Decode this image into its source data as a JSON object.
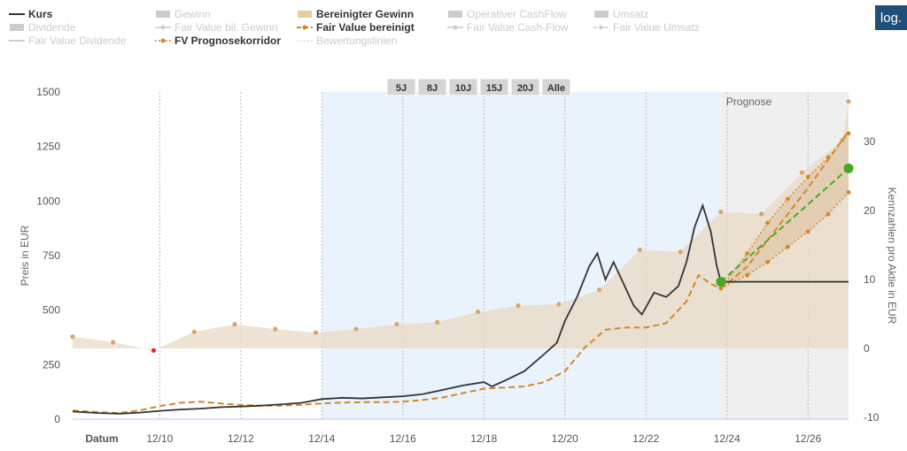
{
  "legend": [
    {
      "label": "Kurs",
      "active": true,
      "style": "line-solid",
      "color": "#333333"
    },
    {
      "label": "Gewinn",
      "active": false,
      "style": "area",
      "color": "#cccccc"
    },
    {
      "label": "Bereinigter Gewinn",
      "active": true,
      "style": "area",
      "color": "#e8c9a0"
    },
    {
      "label": "Operativer CashFlow",
      "active": false,
      "style": "area",
      "color": "#cccccc"
    },
    {
      "label": "Umsatz",
      "active": false,
      "style": "area",
      "color": "#cccccc"
    },
    {
      "label": "Dividende",
      "active": false,
      "style": "area",
      "color": "#cccccc"
    },
    {
      "label": "Fair Value bil. Gewinn",
      "active": false,
      "style": "line-dot",
      "color": "#cccccc"
    },
    {
      "label": "Fair Value bereinigt",
      "active": true,
      "style": "dash-dot",
      "color": "#d4862a"
    },
    {
      "label": "Fair Value Cash-Flow",
      "active": false,
      "style": "line-dot",
      "color": "#cccccc"
    },
    {
      "label": "Fair Value Umsatz",
      "active": false,
      "style": "line-arrow",
      "color": "#cccccc"
    },
    {
      "label": "Fair Value Dividende",
      "active": false,
      "style": "line-solid",
      "color": "#cccccc"
    },
    {
      "label": "FV Prognosekorridor",
      "active": true,
      "style": "dotted-dot",
      "color": "#d4862a"
    },
    {
      "label": "Bewertungslinien",
      "active": false,
      "style": "dotted",
      "color": "#cccccc"
    }
  ],
  "log_button": "log.",
  "range_buttons": [
    "5J",
    "8J",
    "10J",
    "15J",
    "20J",
    "Alle"
  ],
  "prognose_label": "Prognose",
  "colors": {
    "kurs": "#333333",
    "fair_value": "#d4862a",
    "earnings_area": "#ead9c4",
    "earnings_dot": "#d4a76a",
    "forecast_bg": "#efefef",
    "range_highlight": "#eaf3fb",
    "target_line": "#44aa22",
    "red_point": "#e03020"
  },
  "chart_data": {
    "type": "line",
    "xlabel": "Datum",
    "ylabel": "Preis in EUR",
    "y2label": "Kennzahlen pro Aktie in EUR",
    "xlim": [
      2007.85,
      2027.0
    ],
    "ylim": [
      0,
      1500
    ],
    "y2lim": [
      -10,
      37
    ],
    "x_ticks": [
      2010,
      2012,
      2014,
      2016,
      2018,
      2020,
      2022,
      2024,
      2026
    ],
    "x_tick_labels": [
      "12/10",
      "12/12",
      "12/14",
      "12/16",
      "12/18",
      "12/20",
      "12/22",
      "12/24",
      "12/26"
    ],
    "y_ticks": [
      0,
      250,
      500,
      750,
      1000,
      1250,
      1500
    ],
    "y2_ticks": [
      -10,
      0,
      10,
      20,
      30
    ],
    "forecast_start": 2023.85,
    "highlight_range": [
      2014.0,
      2023.85
    ],
    "series": [
      {
        "name": "Kurs",
        "axis": "left",
        "points": [
          [
            2007.85,
            35
          ],
          [
            2008.5,
            28
          ],
          [
            2009.0,
            25
          ],
          [
            2009.5,
            30
          ],
          [
            2010.0,
            38
          ],
          [
            2010.5,
            44
          ],
          [
            2011.0,
            48
          ],
          [
            2011.5,
            55
          ],
          [
            2012.0,
            58
          ],
          [
            2012.5,
            62
          ],
          [
            2013.0,
            68
          ],
          [
            2013.5,
            75
          ],
          [
            2014.0,
            92
          ],
          [
            2014.5,
            98
          ],
          [
            2015.0,
            95
          ],
          [
            2015.5,
            100
          ],
          [
            2016.0,
            105
          ],
          [
            2016.5,
            115
          ],
          [
            2017.0,
            135
          ],
          [
            2017.5,
            155
          ],
          [
            2018.0,
            170
          ],
          [
            2018.2,
            150
          ],
          [
            2018.5,
            175
          ],
          [
            2019.0,
            220
          ],
          [
            2019.5,
            300
          ],
          [
            2019.8,
            350
          ],
          [
            2020.0,
            450
          ],
          [
            2020.3,
            560
          ],
          [
            2020.6,
            700
          ],
          [
            2020.8,
            760
          ],
          [
            2021.0,
            640
          ],
          [
            2021.2,
            720
          ],
          [
            2021.5,
            600
          ],
          [
            2021.7,
            520
          ],
          [
            2021.9,
            480
          ],
          [
            2022.2,
            580
          ],
          [
            2022.5,
            560
          ],
          [
            2022.8,
            610
          ],
          [
            2023.0,
            720
          ],
          [
            2023.2,
            880
          ],
          [
            2023.4,
            980
          ],
          [
            2023.6,
            860
          ],
          [
            2023.75,
            700
          ],
          [
            2023.85,
            630
          ],
          [
            2027.0,
            630
          ]
        ]
      },
      {
        "name": "Fair Value bereinigt",
        "axis": "left",
        "points": [
          [
            2007.85,
            40
          ],
          [
            2008.5,
            32
          ],
          [
            2009.0,
            28
          ],
          [
            2009.5,
            40
          ],
          [
            2010.0,
            60
          ],
          [
            2010.5,
            75
          ],
          [
            2011.0,
            80
          ],
          [
            2011.5,
            72
          ],
          [
            2012.0,
            65
          ],
          [
            2012.5,
            62
          ],
          [
            2013.0,
            62
          ],
          [
            2013.5,
            66
          ],
          [
            2014.0,
            72
          ],
          [
            2014.5,
            76
          ],
          [
            2015.0,
            78
          ],
          [
            2015.5,
            78
          ],
          [
            2016.0,
            80
          ],
          [
            2016.5,
            88
          ],
          [
            2017.0,
            100
          ],
          [
            2017.5,
            120
          ],
          [
            2018.0,
            140
          ],
          [
            2018.5,
            145
          ],
          [
            2019.0,
            150
          ],
          [
            2019.5,
            170
          ],
          [
            2020.0,
            220
          ],
          [
            2020.5,
            330
          ],
          [
            2021.0,
            410
          ],
          [
            2021.5,
            420
          ],
          [
            2022.0,
            420
          ],
          [
            2022.5,
            440
          ],
          [
            2023.0,
            540
          ],
          [
            2023.3,
            660
          ],
          [
            2023.6,
            620
          ],
          [
            2023.85,
            600
          ],
          [
            2024.0,
            620
          ],
          [
            2024.5,
            700
          ],
          [
            2025.0,
            820
          ],
          [
            2025.5,
            940
          ],
          [
            2026.0,
            1060
          ],
          [
            2026.5,
            1190
          ],
          [
            2027.0,
            1320
          ]
        ]
      },
      {
        "name": "FV Prognosekorridor oben",
        "axis": "left",
        "points": [
          [
            2023.85,
            600
          ],
          [
            2024.5,
            760
          ],
          [
            2025.0,
            900
          ],
          [
            2025.5,
            1010
          ],
          [
            2026.0,
            1110
          ],
          [
            2026.5,
            1200
          ],
          [
            2027.0,
            1310
          ]
        ]
      },
      {
        "name": "FV Prognosekorridor unten",
        "axis": "left",
        "points": [
          [
            2023.85,
            600
          ],
          [
            2024.5,
            660
          ],
          [
            2025.0,
            720
          ],
          [
            2025.5,
            790
          ],
          [
            2026.0,
            860
          ],
          [
            2026.5,
            940
          ],
          [
            2027.0,
            1040
          ]
        ]
      },
      {
        "name": "Bereinigter Gewinn",
        "axis": "right",
        "points": [
          [
            2007.85,
            1.7
          ],
          [
            2008.85,
            0.9
          ],
          [
            2009.85,
            -0.3
          ],
          [
            2010.85,
            2.4
          ],
          [
            2011.85,
            3.5
          ],
          [
            2012.85,
            2.8
          ],
          [
            2013.85,
            2.3
          ],
          [
            2014.85,
            2.8
          ],
          [
            2015.85,
            3.5
          ],
          [
            2016.85,
            3.8
          ],
          [
            2017.85,
            5.3
          ],
          [
            2018.85,
            6.2
          ],
          [
            2019.85,
            6.4
          ],
          [
            2020.85,
            8.5
          ],
          [
            2021.85,
            14.3
          ],
          [
            2022.85,
            14.0
          ],
          [
            2023.85,
            19.8
          ],
          [
            2024.85,
            19.5
          ],
          [
            2025.85,
            25.5
          ],
          [
            2026.85,
            30.2
          ],
          [
            2027.0,
            35.8
          ]
        ]
      },
      {
        "name": "Kursziel",
        "axis": "left",
        "points": [
          [
            2023.85,
            630
          ],
          [
            2027.0,
            1150
          ]
        ]
      }
    ]
  }
}
